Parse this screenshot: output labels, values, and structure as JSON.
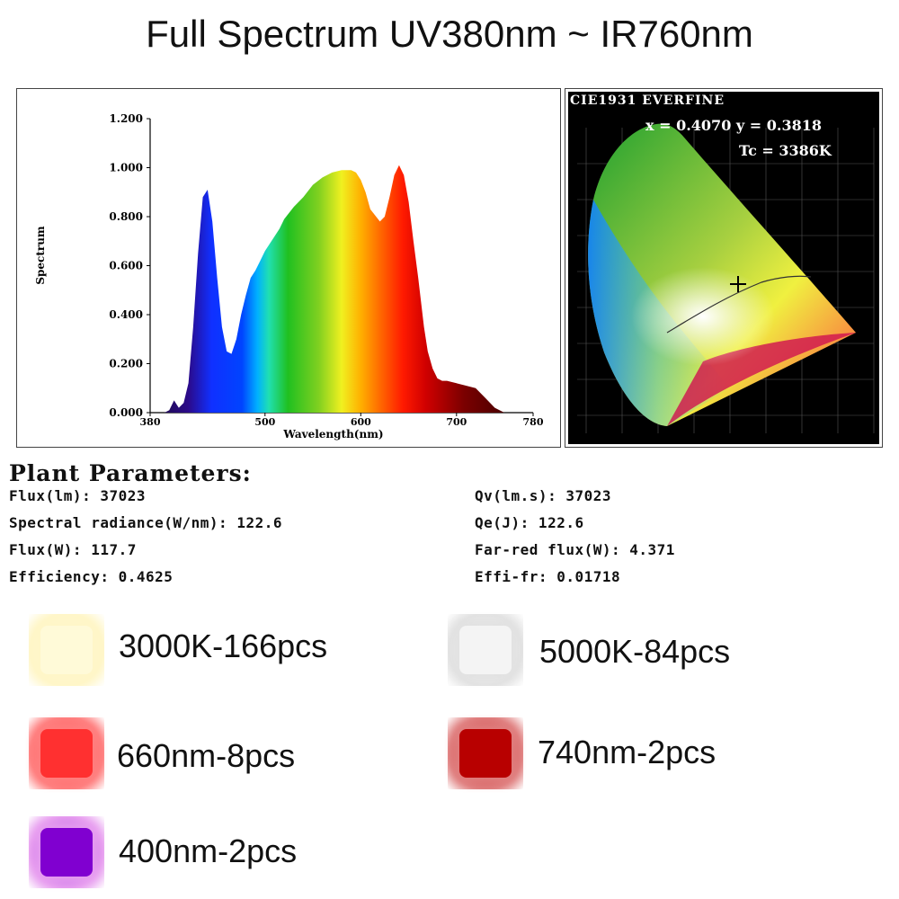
{
  "title": "Full Spectrum UV380nm ~ IR760nm",
  "chart_data": {
    "type": "area",
    "ylabel": "Spectrum",
    "xlabel": "Wavelength(nm)",
    "xlim": [
      380,
      780
    ],
    "ylim": [
      0,
      1.2
    ],
    "x_ticks": [
      "380",
      "500",
      "600",
      "700",
      "780"
    ],
    "y_ticks": [
      "0.000",
      "0.200",
      "0.400",
      "0.600",
      "0.800",
      "1.000",
      "1.200"
    ],
    "series": [
      {
        "x": [
          380,
          395,
          400,
          405,
          410,
          415,
          420,
          425,
          430,
          435,
          440,
          445,
          450,
          455,
          460,
          465,
          470,
          475,
          480,
          485,
          490,
          495,
          500,
          505,
          510,
          515,
          520,
          530,
          540,
          550,
          560,
          570,
          580,
          590,
          595,
          600,
          605,
          610,
          620,
          625,
          630,
          635,
          640,
          645,
          650,
          655,
          660,
          663,
          666,
          670,
          675,
          680,
          685,
          690,
          700,
          710,
          720,
          730,
          740,
          750,
          760,
          765,
          770,
          780
        ],
        "y": [
          0.0,
          0.0,
          0.01,
          0.05,
          0.02,
          0.04,
          0.12,
          0.35,
          0.65,
          0.88,
          0.91,
          0.78,
          0.55,
          0.35,
          0.25,
          0.24,
          0.3,
          0.4,
          0.48,
          0.55,
          0.58,
          0.62,
          0.66,
          0.69,
          0.72,
          0.75,
          0.79,
          0.84,
          0.88,
          0.93,
          0.96,
          0.98,
          0.99,
          0.99,
          0.98,
          0.95,
          0.9,
          0.83,
          0.78,
          0.8,
          0.88,
          0.97,
          1.01,
          0.97,
          0.86,
          0.7,
          0.55,
          0.45,
          0.35,
          0.25,
          0.18,
          0.14,
          0.13,
          0.13,
          0.12,
          0.11,
          0.1,
          0.06,
          0.02,
          0.0,
          0.0,
          0.0,
          0.0,
          0.0
        ]
      }
    ]
  },
  "cie": {
    "brand": "CIE1931 EVERFINE",
    "xy": "x = 0.4070 y = 0.3818",
    "tc": "Tc = 3386K"
  },
  "params": {
    "heading": "Plant Parameters:",
    "left": [
      "Flux(lm): 37023",
      "Spectral radiance(W/nm): 122.6",
      "Flux(W): 117.7",
      "Efficiency: 0.4625"
    ],
    "right": [
      "Qv(lm.s): 37023",
      "Qe(J): 122.6",
      "Far-red flux(W): 4.371",
      "Effi-fr: 0.01718"
    ]
  },
  "leds": [
    {
      "label": "3000K-166pcs",
      "color": "#fff6c8",
      "core": "#fffad8",
      "icon": "led-chip-icon"
    },
    {
      "label": "5000K-84pcs",
      "color": "#e2e2e2",
      "core": "#f4f4f4",
      "icon": "led-chip-icon"
    },
    {
      "label": "660nm-8pcs",
      "color": "#ff8080",
      "core": "#ff3030",
      "icon": "led-chip-icon"
    },
    {
      "label": "740nm-2pcs",
      "color": "#e08080",
      "core": "#b80000",
      "icon": "led-chip-icon"
    },
    {
      "label": "400nm-2pcs",
      "color": "#e8a0f0",
      "core": "#8000d0",
      "icon": "led-chip-icon"
    }
  ]
}
